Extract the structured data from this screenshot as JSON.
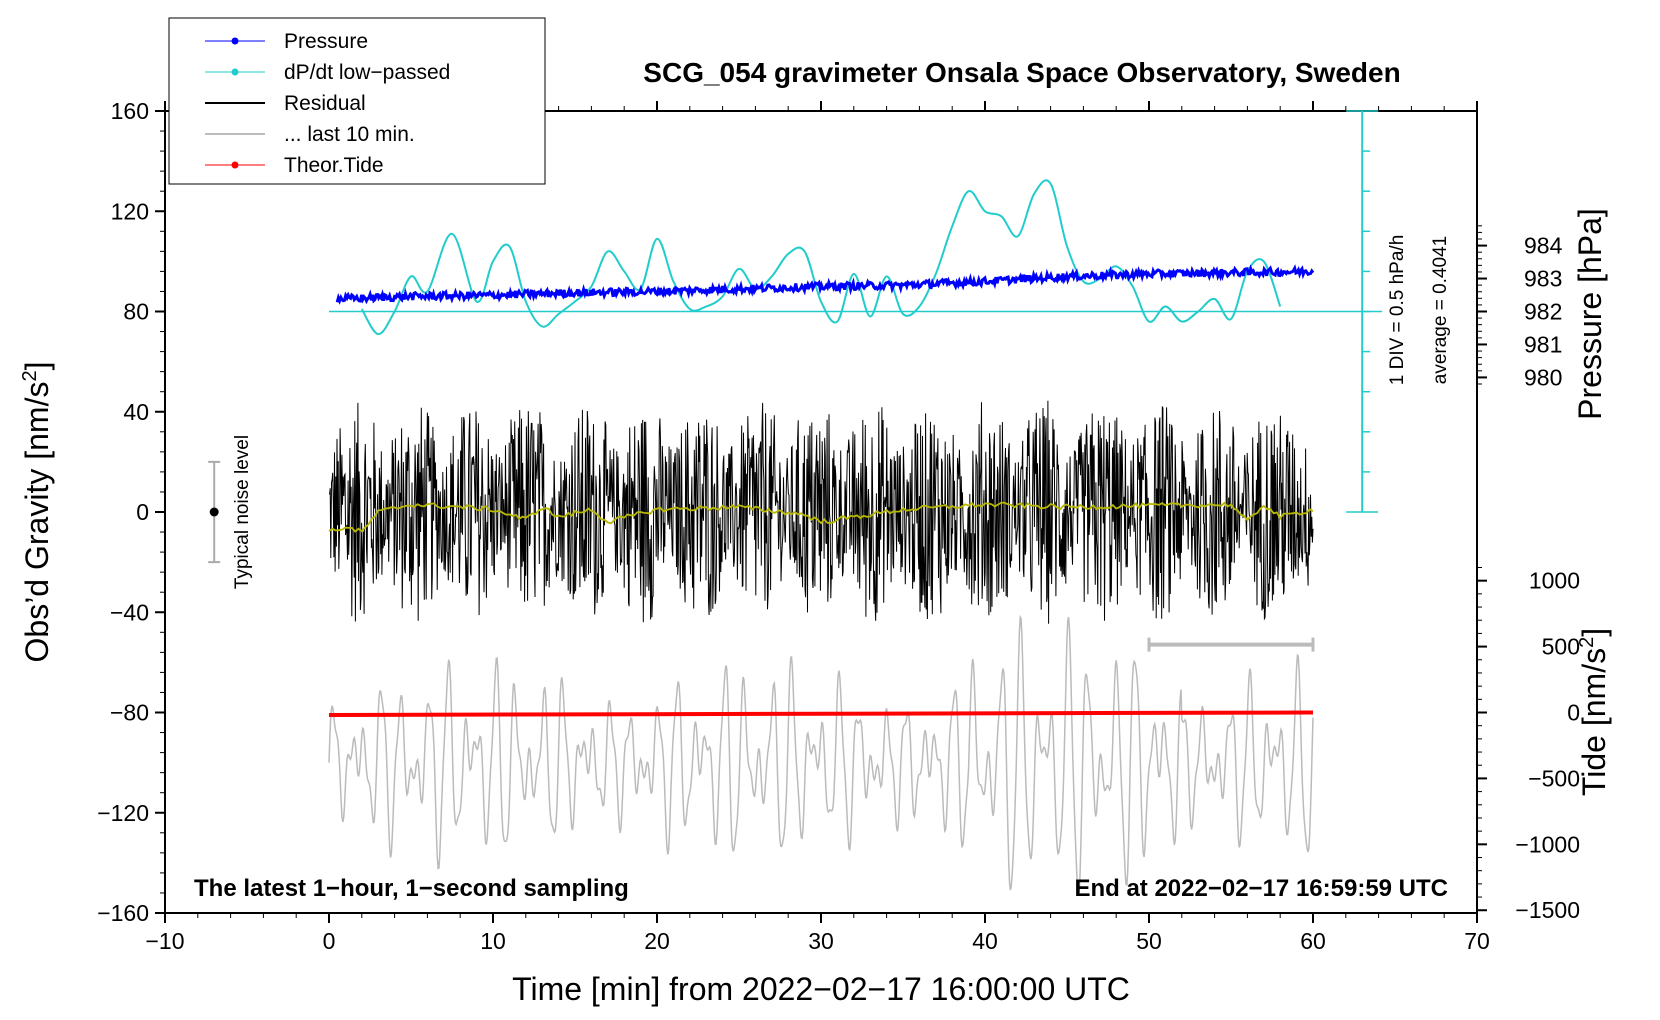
{
  "chart_data": {
    "type": "line",
    "title": "SCG_054 gravimeter Onsala Space Observatory, Sweden",
    "xlabel": "Time [min] from 2022−02−17 16:00:00 UTC",
    "xlim": [
      -10,
      70
    ],
    "x_ticks": [
      "−10",
      "0",
      "10",
      "20",
      "30",
      "40",
      "50",
      "60",
      "70"
    ],
    "y_left": {
      "label_main": "Obs’d Gravity [nm/s",
      "label_sup": "2",
      "label_end": "]",
      "ylim": [
        -160,
        160
      ],
      "ticks": [
        "−160",
        "−120",
        "−80",
        "−40",
        "0",
        "40",
        "80",
        "120",
        "160"
      ]
    },
    "y_right_pressure": {
      "label": "Pressure [hPa]",
      "ticks": [
        "980",
        "981",
        "982",
        "983",
        "984"
      ]
    },
    "y_right_tide": {
      "label_main": "Tide [nm/s",
      "label_sup": "2",
      "label_end": "]",
      "ticks": [
        "−1500",
        "−1000",
        "−500",
        "0",
        "500",
        "1000"
      ]
    },
    "legend": [
      {
        "label": "Pressure",
        "color": "#0000ff",
        "marker": true
      },
      {
        "label": "dP/dt low−passed",
        "color": "#22cccc",
        "marker": true
      },
      {
        "label": "Residual",
        "color": "#000000",
        "marker": false
      },
      {
        "label": "... last 10 min.",
        "color": "#bbbbbb",
        "marker": false
      },
      {
        "label": "Theor.Tide",
        "color": "#ff0000",
        "marker": true
      }
    ],
    "annotations": {
      "noise": "Typical noise level",
      "div": "1 DIV = 0.5 hPa/h",
      "average": "average = 0.4041",
      "bottom_left": "The latest 1−hour, 1−second sampling",
      "bottom_right": "End at 2022−02−17 16:59:59 UTC"
    },
    "series": [
      {
        "name": "Pressure (plotted on gravity scale)",
        "color": "#0000ff",
        "x": [
          0.5,
          5,
          10,
          15,
          20,
          25,
          30,
          35,
          40,
          45,
          50,
          55,
          60
        ],
        "y": [
          85,
          86,
          86.5,
          87.5,
          88,
          89,
          90,
          90.5,
          92,
          94,
          95,
          95.5,
          96
        ]
      },
      {
        "name": "dP/dt low-passed",
        "color": "#22cccc",
        "x": [
          2,
          3,
          4,
          5,
          6,
          7.5,
          9,
          10,
          11,
          12,
          13,
          14,
          15,
          16,
          17,
          18,
          19,
          20,
          21,
          22,
          23,
          24,
          25,
          26,
          27,
          28,
          29,
          30,
          31,
          32,
          33,
          34,
          35,
          36,
          37,
          38,
          39,
          40,
          41,
          42,
          43,
          44,
          45,
          46,
          47,
          48,
          49,
          50,
          51,
          52,
          53,
          54,
          55,
          56,
          57,
          58
        ],
        "y": [
          81,
          71,
          80,
          94,
          88,
          111,
          84,
          100,
          106,
          84,
          74,
          79,
          84,
          90,
          104,
          96,
          89,
          109,
          92,
          81,
          82,
          86,
          97,
          89,
          94,
          103,
          104,
          84,
          76,
          95,
          78,
          94,
          79,
          82,
          95,
          114,
          128,
          120,
          118,
          110,
          127,
          131,
          106,
          92,
          93,
          98,
          90,
          76,
          82,
          76,
          80,
          85,
          77,
          96,
          100,
          82
        ]
      },
      {
        "name": "Residual",
        "color": "#000000",
        "x_range": [
          0,
          60
        ],
        "amplitude": 40
      },
      {
        "name": "Residual smoothed",
        "color": "#b8b800",
        "x": [
          0,
          1,
          2,
          3,
          5,
          8,
          10,
          12,
          13,
          14,
          16,
          17,
          20,
          25,
          29,
          30,
          35,
          40,
          45,
          55,
          56,
          57,
          58,
          60
        ],
        "y": [
          -8,
          -6,
          -8,
          0,
          3,
          2,
          1,
          -3,
          2,
          -2,
          1,
          -4,
          1,
          2,
          -1,
          -4,
          1,
          3,
          2,
          3,
          -4,
          3,
          -2,
          1
        ]
      },
      {
        "name": "... last 10 min. (gravity scale)",
        "color": "#bbbbbb",
        "x_range": [
          0,
          60
        ],
        "center": -100
      },
      {
        "name": "Theor.Tide",
        "color": "#ff0000",
        "x": [
          0,
          60
        ],
        "y": [
          -81,
          -80
        ]
      }
    ],
    "noise_bar": {
      "x": -7,
      "y": 0,
      "half_range": 20
    },
    "last10_bracket": {
      "x0": 50,
      "x1": 60,
      "tide_value": 500
    },
    "pressure_scale_bar": {
      "x": 63,
      "y_top": 160,
      "y_bottom": 0,
      "baseline": 80
    }
  }
}
